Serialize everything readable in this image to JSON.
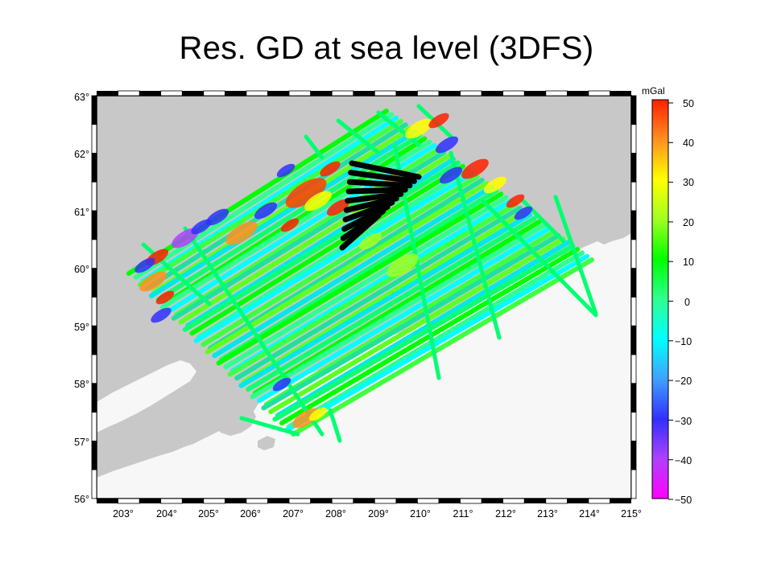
{
  "title": "Res. GD at sea level (3DFS)",
  "colors": {
    "land": "#c8c8c8",
    "sea": "#f7f7f7",
    "no_data_block": "#000000",
    "frame": "#000000"
  },
  "map": {
    "lon_ticks": [
      "203°",
      "204°",
      "205°",
      "206°",
      "207°",
      "208°",
      "209°",
      "210°",
      "211°",
      "212°",
      "213°",
      "214°",
      "215°"
    ],
    "lat_ticks": [
      "63°",
      "62°",
      "61°",
      "60°",
      "59°",
      "58°",
      "57°",
      "56°"
    ],
    "lon_range": [
      202.5,
      215
    ],
    "lat_range": [
      56,
      63
    ]
  },
  "colorbar": {
    "unit": "mGal",
    "labels": [
      "50",
      "40",
      "30",
      "20",
      "10",
      "0",
      "−10",
      "−20",
      "−30",
      "−40",
      "−50"
    ],
    "stops": [
      "#ff00ff",
      "#b040ff",
      "#3030ff",
      "#40a0ff",
      "#00ffff",
      "#30ff90",
      "#00ff00",
      "#a0ff20",
      "#ffff00",
      "#ff9020",
      "#ff2000"
    ]
  }
}
